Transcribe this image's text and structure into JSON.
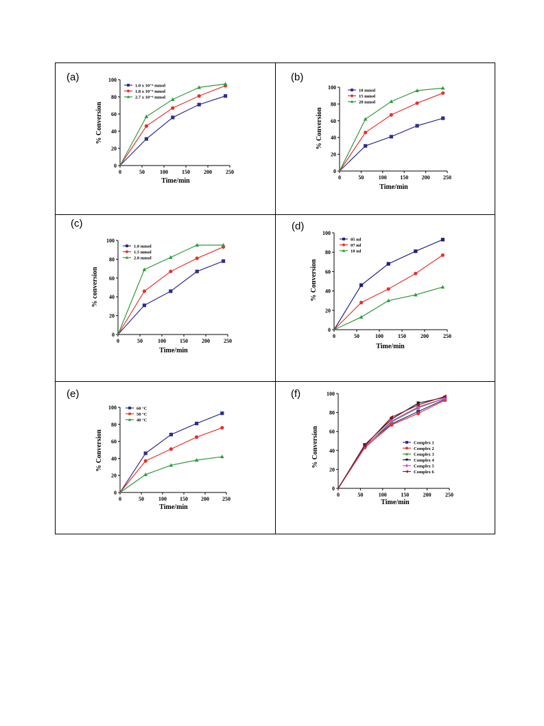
{
  "chart_data": [
    {
      "panel": "(a)",
      "type": "line",
      "xlabel": "Time/min",
      "ylabel": "% Conversion",
      "xlim": [
        0,
        250
      ],
      "ylim": [
        0,
        100
      ],
      "xticks": [
        0,
        50,
        100,
        150,
        200,
        250
      ],
      "yticks": [
        0,
        20,
        40,
        60,
        80,
        100
      ],
      "legend_position": "top-left",
      "series": [
        {
          "name": "1.0 x 10⁻⁴ mmol",
          "color": "#2e2e8c",
          "marker": "square",
          "x": [
            0,
            60,
            120,
            180,
            240
          ],
          "y": [
            0,
            31,
            56,
            71,
            81
          ]
        },
        {
          "name": "1.8 x 10⁻⁴ mmol",
          "color": "#e8302a",
          "marker": "circle",
          "x": [
            0,
            60,
            120,
            180,
            240
          ],
          "y": [
            0,
            46,
            67,
            81,
            93
          ]
        },
        {
          "name": "2.7 x 10⁻⁴ mmol",
          "color": "#2e9a3a",
          "marker": "triangle",
          "x": [
            0,
            60,
            120,
            180,
            240
          ],
          "y": [
            0,
            57,
            77,
            91,
            95
          ]
        }
      ]
    },
    {
      "panel": "(b)",
      "type": "line",
      "xlabel": "Time/min",
      "ylabel": "% Conversion",
      "xlim": [
        0,
        250
      ],
      "ylim": [
        0,
        100
      ],
      "xticks": [
        0,
        50,
        100,
        150,
        200,
        250
      ],
      "yticks": [
        0,
        20,
        40,
        60,
        80,
        100
      ],
      "legend_position": "top-left",
      "series": [
        {
          "name": "10 mmol",
          "color": "#2e2e8c",
          "marker": "square",
          "x": [
            0,
            60,
            120,
            180,
            240
          ],
          "y": [
            0,
            30,
            41,
            54,
            63
          ]
        },
        {
          "name": "15 mmol",
          "color": "#e8302a",
          "marker": "circle",
          "x": [
            0,
            60,
            120,
            180,
            240
          ],
          "y": [
            0,
            46,
            67,
            81,
            93
          ]
        },
        {
          "name": "20 mmol",
          "color": "#2e9a3a",
          "marker": "triangle",
          "x": [
            0,
            60,
            120,
            180,
            240
          ],
          "y": [
            0,
            62,
            83,
            96,
            99
          ]
        }
      ]
    },
    {
      "panel": "(c)",
      "type": "line",
      "xlabel": "Time/min",
      "ylabel": "% conversion",
      "xlim": [
        0,
        250
      ],
      "ylim": [
        0,
        100
      ],
      "xticks": [
        0,
        50,
        100,
        150,
        200,
        250
      ],
      "yticks": [
        0,
        20,
        40,
        60,
        80,
        100
      ],
      "legend_position": "top-left",
      "series": [
        {
          "name": "1.0 mmol",
          "color": "#2e2e8c",
          "marker": "square",
          "x": [
            0,
            60,
            120,
            180,
            240
          ],
          "y": [
            0,
            31,
            46,
            67,
            78
          ]
        },
        {
          "name": "1.5 mmol",
          "color": "#e8302a",
          "marker": "circle",
          "x": [
            0,
            60,
            120,
            180,
            240
          ],
          "y": [
            0,
            46,
            67,
            81,
            93
          ]
        },
        {
          "name": "2.0 mmol",
          "color": "#2e9a3a",
          "marker": "triangle",
          "x": [
            0,
            60,
            120,
            180,
            240
          ],
          "y": [
            0,
            69,
            82,
            95,
            95
          ]
        }
      ]
    },
    {
      "panel": "(d)",
      "type": "line",
      "xlabel": "Time/min",
      "ylabel": "% Conversion",
      "xlim": [
        0,
        250
      ],
      "ylim": [
        0,
        100
      ],
      "xticks": [
        0,
        50,
        100,
        150,
        200,
        250
      ],
      "yticks": [
        0,
        20,
        40,
        60,
        80,
        100
      ],
      "legend_position": "top-left",
      "series": [
        {
          "name": "05 ml",
          "color": "#1f1f80",
          "marker": "square",
          "x": [
            0,
            60,
            120,
            180,
            240
          ],
          "y": [
            0,
            46,
            68,
            81,
            93
          ]
        },
        {
          "name": "07 ml",
          "color": "#e8302a",
          "marker": "circle",
          "x": [
            0,
            60,
            120,
            180,
            240
          ],
          "y": [
            0,
            28,
            42,
            58,
            77
          ]
        },
        {
          "name": "10 ml",
          "color": "#2e9a3a",
          "marker": "triangle",
          "x": [
            0,
            60,
            120,
            180,
            240
          ],
          "y": [
            0,
            13,
            30,
            36,
            44
          ]
        }
      ]
    },
    {
      "panel": "(e)",
      "type": "line",
      "xlabel": "Time/min",
      "ylabel": "% Conversion",
      "xlim": [
        0,
        250
      ],
      "ylim": [
        0,
        100
      ],
      "xticks": [
        0,
        50,
        100,
        150,
        200,
        250
      ],
      "yticks": [
        0,
        20,
        40,
        60,
        80,
        100
      ],
      "legend_position": "top-left",
      "series": [
        {
          "name": "60 °C",
          "color": "#2e2e8c",
          "marker": "square",
          "x": [
            0,
            60,
            120,
            180,
            240
          ],
          "y": [
            0,
            46,
            68,
            81,
            93
          ]
        },
        {
          "name": "50 °C",
          "color": "#e8302a",
          "marker": "circle",
          "x": [
            0,
            60,
            120,
            180,
            240
          ],
          "y": [
            0,
            37,
            51,
            65,
            76
          ]
        },
        {
          "name": "40 °C",
          "color": "#2e9a3a",
          "marker": "triangle",
          "x": [
            0,
            60,
            120,
            180,
            240
          ],
          "y": [
            0,
            21,
            32,
            38,
            42
          ]
        }
      ]
    },
    {
      "panel": "(f)",
      "type": "line",
      "xlabel": "Time/min",
      "ylabel": "% Conversion",
      "xlim": [
        0,
        250
      ],
      "ylim": [
        0,
        100
      ],
      "xticks": [
        0,
        50,
        100,
        150,
        200,
        250
      ],
      "yticks": [
        0,
        20,
        40,
        60,
        80,
        100
      ],
      "legend_position": "center-right",
      "series": [
        {
          "name": "Complex 1",
          "color": "#2e2e8c",
          "marker": "square",
          "x": [
            0,
            60,
            120,
            180,
            240
          ],
          "y": [
            0,
            45,
            68,
            81,
            94
          ]
        },
        {
          "name": "Complex 2",
          "color": "#e8302a",
          "marker": "circle",
          "x": [
            0,
            60,
            120,
            180,
            240
          ],
          "y": [
            0,
            43,
            67,
            79,
            93
          ]
        },
        {
          "name": "Complex 3",
          "color": "#2e9a3a",
          "marker": "triangle",
          "x": [
            0,
            60,
            120,
            180,
            240
          ],
          "y": [
            0,
            44,
            70,
            85,
            95
          ]
        },
        {
          "name": "Complex 4",
          "color": "#1a1a1a",
          "marker": "triangle-down",
          "x": [
            0,
            60,
            120,
            180,
            240
          ],
          "y": [
            0,
            46,
            73,
            90,
            96
          ]
        },
        {
          "name": "Complex 5",
          "color": "#e83ad8",
          "marker": "diamond",
          "x": [
            0,
            60,
            120,
            180,
            240
          ],
          "y": [
            0,
            44,
            71,
            86,
            95
          ]
        },
        {
          "name": "Complex 6",
          "color": "#8c1a1a",
          "marker": "triangle-left",
          "x": [
            0,
            60,
            120,
            180,
            240
          ],
          "y": [
            0,
            45,
            75,
            88,
            97
          ]
        }
      ]
    }
  ]
}
